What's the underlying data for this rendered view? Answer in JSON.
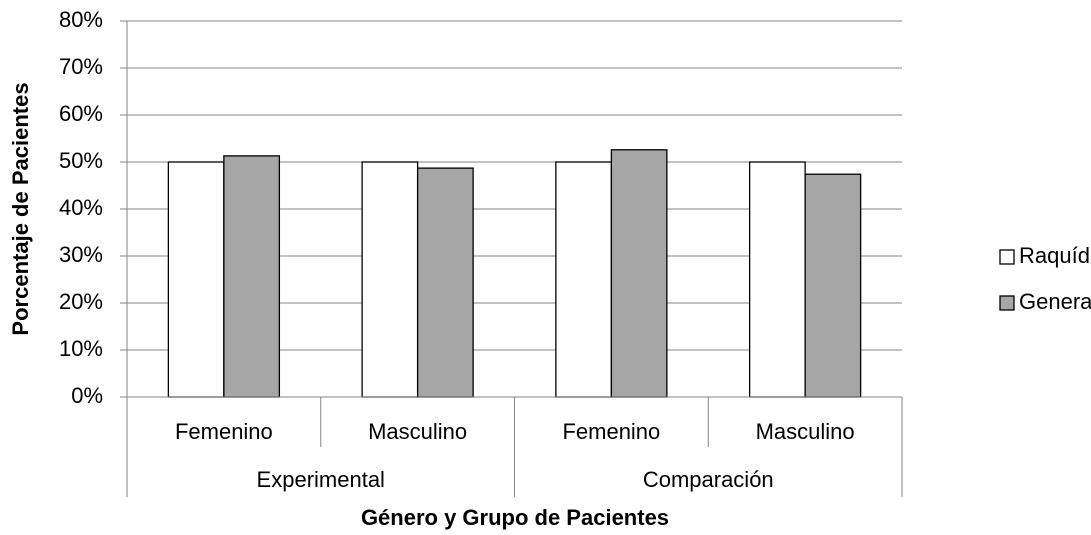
{
  "chart_data": {
    "type": "bar",
    "x_label": "Género y Grupo de Pacientes",
    "y_label": "Porcentaje de Pacientes",
    "categories": [
      "Femenino",
      "Masculino",
      "Femenino",
      "Masculino"
    ],
    "groups": [
      "Experimental",
      "Comparación"
    ],
    "series": [
      {
        "name": "Raquídea",
        "color": "#ffffff",
        "values": [
          50,
          50,
          50,
          50
        ]
      },
      {
        "name": "General",
        "color": "#a6a6a6",
        "values": [
          51.3,
          48.7,
          52.6,
          47.4
        ]
      }
    ],
    "ylim": [
      0,
      80
    ],
    "yticks": [
      {
        "value": 0,
        "label": "0%"
      },
      {
        "value": 10,
        "label": "10%"
      },
      {
        "value": 20,
        "label": "20%"
      },
      {
        "value": 30,
        "label": "30%"
      },
      {
        "value": 40,
        "label": "40%"
      },
      {
        "value": 50,
        "label": "50%"
      },
      {
        "value": 60,
        "label": "60%"
      },
      {
        "value": 70,
        "label": "70%"
      },
      {
        "value": 80,
        "label": "80%"
      }
    ],
    "grid": true,
    "legend": "right"
  }
}
